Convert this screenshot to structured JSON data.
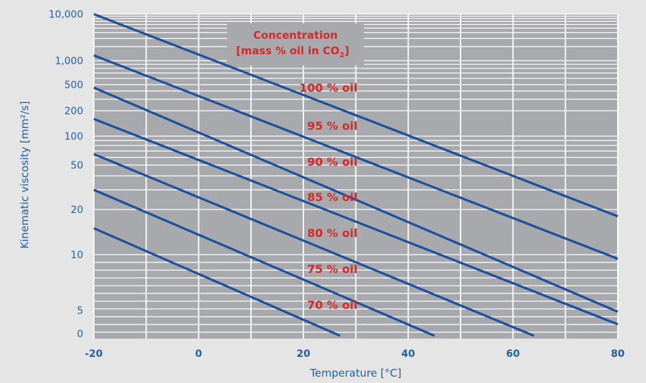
{
  "chart_data": {
    "type": "line",
    "xlabel": "Temperature  [°C]",
    "ylabel": "Kinematic viscosity [mm²/s]",
    "xlim": [
      -20,
      80
    ],
    "x_ticks": [
      "-20",
      "0",
      "20",
      "40",
      "60",
      "80"
    ],
    "y_tick_labels": [
      "10,000",
      "1,000",
      "500",
      "200",
      "100",
      "50",
      "20",
      "10",
      "5",
      "0"
    ],
    "y_scale": "log (graphical)",
    "grid": true,
    "legend_title_line1": "Concentration",
    "legend_title_line2": "[mass % oil in CO",
    "legend_title_sub": "2",
    "legend_title_close": "]",
    "series": [
      {
        "name": "100 % oil",
        "x": [
          -20,
          80
        ],
        "y": [
          10000,
          18
        ]
      },
      {
        "name": "95 % oil",
        "x": [
          -20,
          80
        ],
        "y": [
          1300,
          9.5
        ]
      },
      {
        "name": "90 % oil",
        "x": [
          -20,
          80
        ],
        "y": [
          450,
          4.7
        ]
      },
      {
        "name": "85 % oil",
        "x": [
          -20,
          80
        ],
        "y": [
          160,
          2
        ]
      },
      {
        "name": "80 % oil",
        "x": [
          -20,
          64
        ],
        "y": [
          65,
          0
        ]
      },
      {
        "name": "75 % oil",
        "x": [
          -20,
          45
        ],
        "y": [
          30,
          0
        ]
      },
      {
        "name": "70 % oil",
        "x": [
          -20,
          27
        ],
        "y": [
          15,
          0
        ]
      }
    ],
    "colors": {
      "line": "#1a4f9c",
      "plot_bg": "#a7a9ac",
      "grid": "#ffffff",
      "label": "#d42a2a",
      "axis_text": "#1e5fa6"
    }
  }
}
